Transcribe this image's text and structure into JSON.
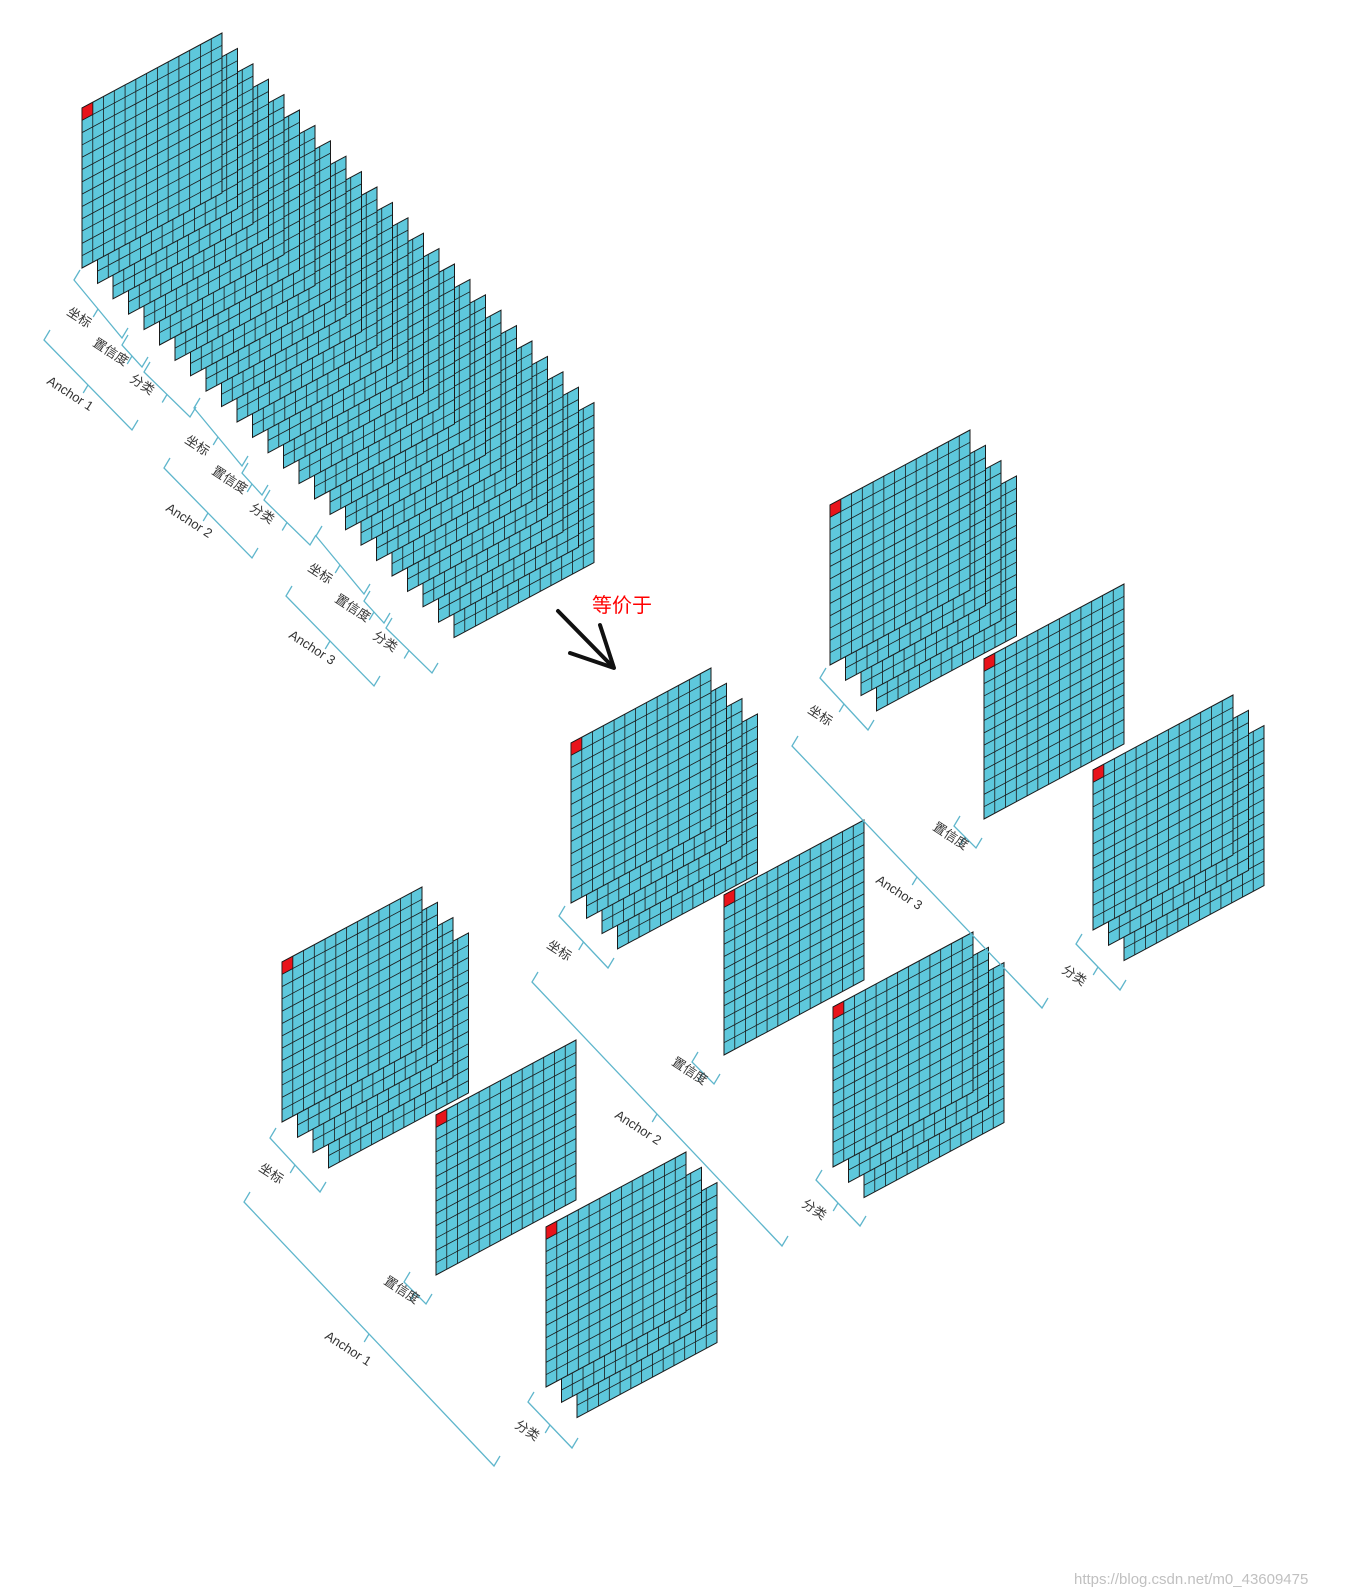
{
  "colors": {
    "cell_fill": "#5ec8dc",
    "grid_line": "#1a1a1a",
    "highlight_cell": "#e8141b",
    "bracket": "#5fb6cc",
    "equivalent_text": "#ff0000",
    "watermark": "#c0c0c0"
  },
  "grid_cells": 13,
  "top_stack": {
    "layer_count": 25,
    "groups": [
      {
        "anchor": "Anchor 1",
        "coord": "坐标",
        "conf": "置信度",
        "cls": "分类"
      },
      {
        "anchor": "Anchor 2",
        "coord": "坐标",
        "conf": "置信度",
        "cls": "分类"
      },
      {
        "anchor": "Anchor 3",
        "coord": "坐标",
        "conf": "置信度",
        "cls": "分类"
      }
    ]
  },
  "equivalent_label": "等价于",
  "arrow_icon": "arrow-down-right-icon",
  "split": [
    {
      "anchor": "Anchor 1",
      "coord": "坐标",
      "conf": "置信度",
      "cls": "分类"
    },
    {
      "anchor": "Anchor 2",
      "coord": "坐标",
      "conf": "置信度",
      "cls": "分类"
    },
    {
      "anchor": "Anchor 3",
      "coord": "坐标",
      "conf": "置信度",
      "cls": "分类"
    }
  ],
  "watermark": "https://blog.csdn.net/m0_43609475"
}
